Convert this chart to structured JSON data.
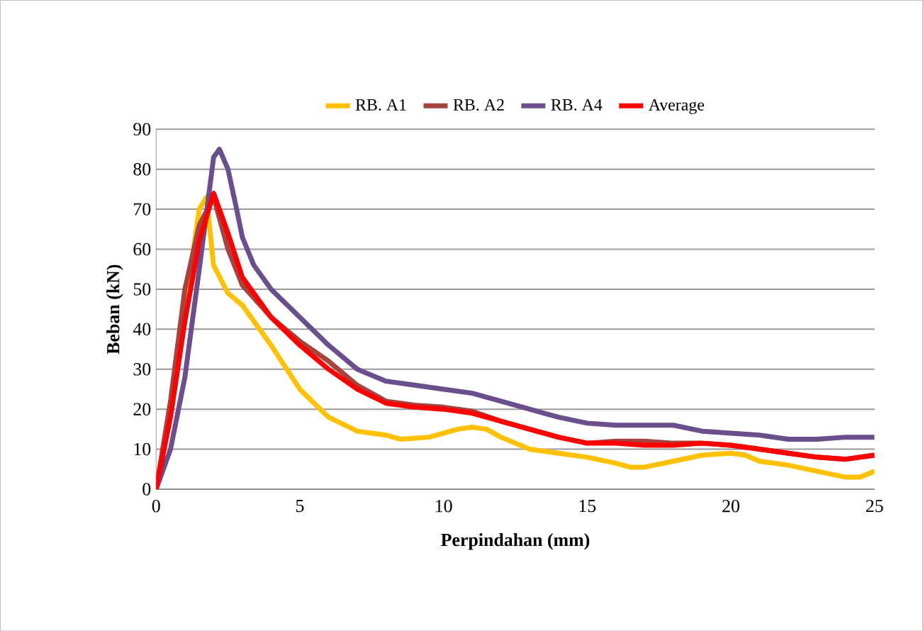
{
  "chart_data": {
    "type": "line",
    "xlabel": "Perpindahan (mm)",
    "ylabel": "Beban (kN)",
    "xlim": [
      0,
      25
    ],
    "xticks": [
      0,
      5,
      10,
      15,
      20,
      25
    ],
    "ylim": [
      0,
      90
    ],
    "yticks": [
      0,
      10,
      20,
      30,
      40,
      50,
      60,
      70,
      80,
      90
    ],
    "grid": "y",
    "legend": "top",
    "marker": "none",
    "line_style": "solid",
    "series": [
      {
        "name": "RB. A1",
        "color": "#ffc000",
        "x": [
          0,
          0.5,
          1,
          1.5,
          1.75,
          2,
          2.5,
          3,
          4,
          5,
          6,
          7,
          8,
          8.5,
          9.5,
          10.5,
          11,
          11.5,
          12,
          13,
          14,
          15,
          16,
          16.5,
          17,
          18,
          19,
          20,
          20.5,
          21,
          22,
          23,
          24,
          24.5,
          25
        ],
        "values": [
          0,
          20,
          45,
          70,
          73,
          56,
          49,
          46,
          36,
          25,
          18,
          14.5,
          13.5,
          12.5,
          13,
          15,
          15.5,
          15,
          13,
          10,
          9,
          8,
          6.5,
          5.5,
          5.5,
          7,
          8.5,
          9,
          8.5,
          7,
          6,
          4.5,
          3,
          3,
          4.5
        ]
      },
      {
        "name": "RB. A2",
        "color": "#a5443f",
        "x": [
          0,
          0.5,
          1,
          1.5,
          2,
          2.5,
          3,
          4,
          5,
          6,
          7,
          8,
          9,
          10,
          11,
          12,
          13,
          14,
          15,
          16,
          17,
          18,
          19,
          20,
          21,
          22,
          23,
          24,
          25
        ],
        "values": [
          0,
          22,
          50,
          66,
          73,
          60,
          51,
          43,
          37,
          32,
          26,
          22,
          21,
          20.5,
          19.5,
          17,
          15,
          13,
          11.5,
          12,
          12,
          11.5,
          11.5,
          11,
          10,
          9,
          8,
          7.5,
          8.5
        ]
      },
      {
        "name": "RB. A4",
        "color": "#6b4f8c",
        "x": [
          0,
          0.5,
          1,
          1.5,
          2,
          2.2,
          2.5,
          2.8,
          3,
          3.4,
          4,
          5,
          6,
          7,
          8,
          9,
          10,
          11,
          12,
          13,
          14,
          15,
          16,
          17,
          18,
          19,
          20,
          21,
          22,
          23,
          24,
          25
        ],
        "values": [
          0,
          10,
          28,
          55,
          83,
          85,
          80,
          70,
          63,
          56,
          50,
          43,
          36,
          30,
          27,
          26,
          25,
          24,
          22,
          20,
          18,
          16.5,
          16,
          16,
          16,
          14.5,
          14,
          13.5,
          12.5,
          12.5,
          13,
          13
        ]
      },
      {
        "name": "Average",
        "color": "#ff0000",
        "x": [
          0,
          0.5,
          1,
          1.5,
          2,
          2.5,
          3,
          4,
          5,
          6,
          7,
          8,
          9,
          10,
          11,
          12,
          13,
          14,
          15,
          16,
          17,
          18,
          19,
          20,
          21,
          22,
          23,
          24,
          25
        ],
        "values": [
          0,
          18,
          42,
          62,
          74,
          64,
          53,
          43,
          36,
          30,
          25,
          21.5,
          20.5,
          20,
          19,
          17,
          15,
          13,
          11.5,
          11.5,
          11,
          11,
          11.5,
          11,
          10,
          9,
          8,
          7.5,
          8.5
        ]
      }
    ]
  }
}
